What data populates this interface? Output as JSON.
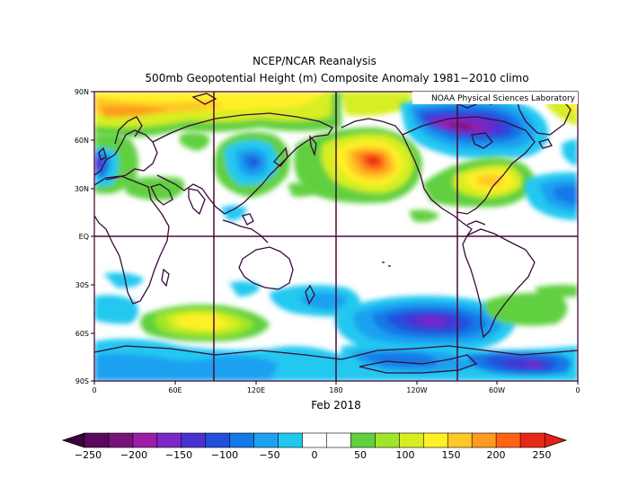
{
  "title_line1": "NCEP/NCAR Reanalysis",
  "title_line2": "500mb Geopotential Height (m) Composite Anomaly 1981-2010 climo",
  "credit": "NOAA Physical Sciences Laboratory",
  "period": "Feb 2018",
  "lat_ticks": [
    "90N",
    "60N",
    "30N",
    "EQ",
    "30S",
    "60S",
    "90S"
  ],
  "lon_ticks": [
    "0",
    "60E",
    "120E",
    "180",
    "120W",
    "60W",
    "0"
  ],
  "colorbar": {
    "labels": [
      "-250",
      "-200",
      "-150",
      "-100",
      "-50",
      "0",
      "50",
      "100",
      "150",
      "200",
      "250"
    ],
    "colors": [
      "#5a0a5a",
      "#781478",
      "#9a1ea8",
      "#7a28c8",
      "#4a32d2",
      "#2050dc",
      "#1478e6",
      "#1ea0f0",
      "#20c8f0",
      "#ffffff",
      "#ffffff",
      "#60d040",
      "#a0e628",
      "#d6ee20",
      "#fff028",
      "#ffc828",
      "#ff9b1e",
      "#ff6414",
      "#e62814"
    ]
  },
  "colors": {
    "frame": "#4a0a3a",
    "coast": "#3a0a3a"
  }
}
